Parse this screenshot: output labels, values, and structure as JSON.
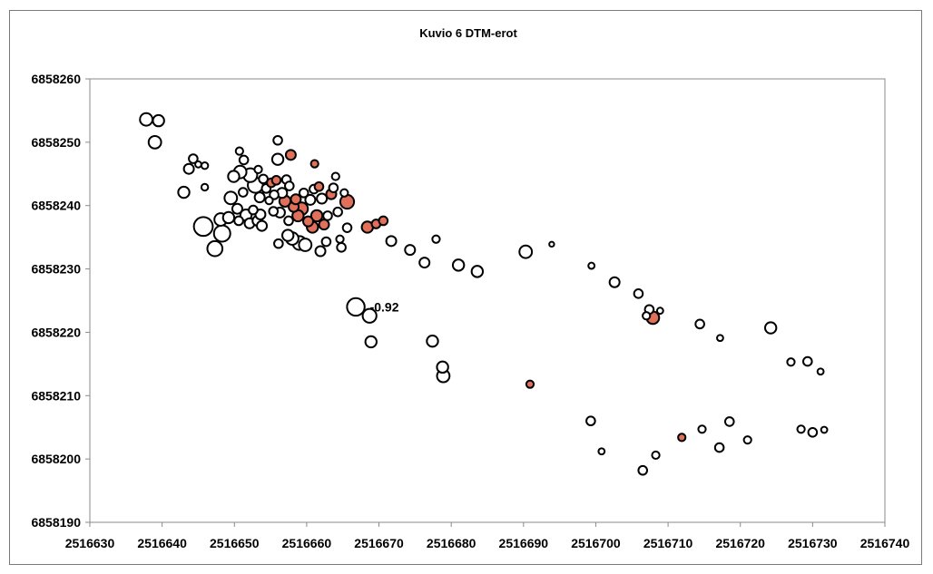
{
  "chart_data": {
    "type": "scatter",
    "title": "Kuvio 6 DTM-erot",
    "xlabel": "",
    "ylabel": "",
    "xlim": [
      2516630,
      2516740
    ],
    "ylim": [
      6858190,
      6858260
    ],
    "xticks": [
      2516630,
      2516640,
      2516650,
      2516660,
      2516670,
      2516680,
      2516690,
      2516700,
      2516710,
      2516720,
      2516730,
      2516740
    ],
    "yticks": [
      6858190,
      6858200,
      6858210,
      6858220,
      6858230,
      6858240,
      6858250,
      6858260
    ],
    "grid": false,
    "legend": "none",
    "colors": {
      "positive": "#e0705a",
      "negative": "#ffffff",
      "stroke": "#000000",
      "plot_border": "#8a8a8a"
    },
    "annotation": {
      "text": "-0.92",
      "x": 2516668.5,
      "y": 6858224
    },
    "points": [
      {
        "x": 2516637.8,
        "y": 6858253.6,
        "size": 0.35,
        "sign": "neg"
      },
      {
        "x": 2516639.5,
        "y": 6858253.4,
        "size": 0.3,
        "sign": "neg"
      },
      {
        "x": 2516639.0,
        "y": 6858250.0,
        "size": 0.35,
        "sign": "neg"
      },
      {
        "x": 2516643.0,
        "y": 6858242.1,
        "size": 0.3,
        "sign": "neg"
      },
      {
        "x": 2516643.7,
        "y": 6858245.8,
        "size": 0.25,
        "sign": "neg"
      },
      {
        "x": 2516644.3,
        "y": 6858247.4,
        "size": 0.2,
        "sign": "neg"
      },
      {
        "x": 2516645.0,
        "y": 6858246.5,
        "size": 0.1,
        "sign": "neg"
      },
      {
        "x": 2516645.9,
        "y": 6858246.3,
        "size": 0.12,
        "sign": "neg"
      },
      {
        "x": 2516645.9,
        "y": 6858242.9,
        "size": 0.12,
        "sign": "neg"
      },
      {
        "x": 2516645.7,
        "y": 6858236.7,
        "size": 0.6,
        "sign": "neg"
      },
      {
        "x": 2516647.3,
        "y": 6858233.2,
        "size": 0.45,
        "sign": "neg"
      },
      {
        "x": 2516648.1,
        "y": 6858237.8,
        "size": 0.35,
        "sign": "neg"
      },
      {
        "x": 2516648.3,
        "y": 6858235.6,
        "size": 0.5,
        "sign": "neg"
      },
      {
        "x": 2516649.2,
        "y": 6858238.1,
        "size": 0.3,
        "sign": "neg"
      },
      {
        "x": 2516649.5,
        "y": 6858241.2,
        "size": 0.35,
        "sign": "neg"
      },
      {
        "x": 2516649.9,
        "y": 6858244.6,
        "size": 0.3,
        "sign": "neg"
      },
      {
        "x": 2516650.4,
        "y": 6858239.5,
        "size": 0.25,
        "sign": "neg"
      },
      {
        "x": 2516650.8,
        "y": 6858245.3,
        "size": 0.35,
        "sign": "neg"
      },
      {
        "x": 2516650.7,
        "y": 6858248.6,
        "size": 0.15,
        "sign": "neg"
      },
      {
        "x": 2516650.6,
        "y": 6858237.6,
        "size": 0.2,
        "sign": "neg"
      },
      {
        "x": 2516651.3,
        "y": 6858247.2,
        "size": 0.2,
        "sign": "neg"
      },
      {
        "x": 2516651.2,
        "y": 6858242.1,
        "size": 0.2,
        "sign": "neg"
      },
      {
        "x": 2516651.6,
        "y": 6858238.5,
        "size": 0.3,
        "sign": "neg"
      },
      {
        "x": 2516652.1,
        "y": 6858237.2,
        "size": 0.25,
        "sign": "neg"
      },
      {
        "x": 2516652.2,
        "y": 6858244.8,
        "size": 0.4,
        "sign": "neg"
      },
      {
        "x": 2516652.6,
        "y": 6858239.3,
        "size": 0.2,
        "sign": "neg"
      },
      {
        "x": 2516652.9,
        "y": 6858243.2,
        "size": 0.45,
        "sign": "neg"
      },
      {
        "x": 2516653.2,
        "y": 6858237.6,
        "size": 0.25,
        "sign": "neg"
      },
      {
        "x": 2516653.3,
        "y": 6858245.7,
        "size": 0.15,
        "sign": "neg"
      },
      {
        "x": 2516653.5,
        "y": 6858241.3,
        "size": 0.25,
        "sign": "neg"
      },
      {
        "x": 2516653.6,
        "y": 6858238.6,
        "size": 0.25,
        "sign": "neg"
      },
      {
        "x": 2516653.8,
        "y": 6858236.8,
        "size": 0.25,
        "sign": "neg"
      },
      {
        "x": 2516654.0,
        "y": 6858244.2,
        "size": 0.2,
        "sign": "neg"
      },
      {
        "x": 2516654.4,
        "y": 6858242.7,
        "size": 0.2,
        "sign": "neg"
      },
      {
        "x": 2516654.8,
        "y": 6858240.8,
        "size": 0.15,
        "sign": "neg"
      },
      {
        "x": 2516655.1,
        "y": 6858243.6,
        "size": 0.2,
        "sign": "pos"
      },
      {
        "x": 2516655.4,
        "y": 6858239.1,
        "size": 0.2,
        "sign": "neg"
      },
      {
        "x": 2516655.5,
        "y": 6858241.7,
        "size": 0.2,
        "sign": "neg"
      },
      {
        "x": 2516655.8,
        "y": 6858244.0,
        "size": 0.2,
        "sign": "pos"
      },
      {
        "x": 2516656.0,
        "y": 6858247.3,
        "size": 0.3,
        "sign": "neg"
      },
      {
        "x": 2516656.0,
        "y": 6858250.3,
        "size": 0.2,
        "sign": "neg"
      },
      {
        "x": 2516656.1,
        "y": 6858234.0,
        "size": 0.2,
        "sign": "neg"
      },
      {
        "x": 2516656.3,
        "y": 6858238.9,
        "size": 0.25,
        "sign": "neg"
      },
      {
        "x": 2516656.6,
        "y": 6858242.0,
        "size": 0.25,
        "sign": "neg"
      },
      {
        "x": 2516657.0,
        "y": 6858240.7,
        "size": 0.3,
        "sign": "pos"
      },
      {
        "x": 2516657.2,
        "y": 6858244.1,
        "size": 0.2,
        "sign": "neg"
      },
      {
        "x": 2516657.4,
        "y": 6858235.3,
        "size": 0.3,
        "sign": "neg"
      },
      {
        "x": 2516657.5,
        "y": 6858237.6,
        "size": 0.2,
        "sign": "neg"
      },
      {
        "x": 2516657.6,
        "y": 6858243.1,
        "size": 0.2,
        "sign": "neg"
      },
      {
        "x": 2516657.8,
        "y": 6858248.0,
        "size": 0.25,
        "sign": "pos"
      },
      {
        "x": 2516658.0,
        "y": 6858234.8,
        "size": 0.35,
        "sign": "neg"
      },
      {
        "x": 2516658.2,
        "y": 6858239.8,
        "size": 0.25,
        "sign": "pos"
      },
      {
        "x": 2516658.5,
        "y": 6858241.0,
        "size": 0.25,
        "sign": "pos"
      },
      {
        "x": 2516658.8,
        "y": 6858238.4,
        "size": 0.3,
        "sign": "pos"
      },
      {
        "x": 2516659.0,
        "y": 6858234.1,
        "size": 0.4,
        "sign": "neg"
      },
      {
        "x": 2516659.3,
        "y": 6858239.5,
        "size": 0.35,
        "sign": "pos"
      },
      {
        "x": 2516659.6,
        "y": 6858242.0,
        "size": 0.2,
        "sign": "neg"
      },
      {
        "x": 2516659.8,
        "y": 6858233.8,
        "size": 0.35,
        "sign": "neg"
      },
      {
        "x": 2516660.2,
        "y": 6858237.5,
        "size": 0.25,
        "sign": "pos"
      },
      {
        "x": 2516660.5,
        "y": 6858240.9,
        "size": 0.25,
        "sign": "neg"
      },
      {
        "x": 2516660.8,
        "y": 6858236.6,
        "size": 0.3,
        "sign": "pos"
      },
      {
        "x": 2516661.0,
        "y": 6858242.6,
        "size": 0.2,
        "sign": "neg"
      },
      {
        "x": 2516661.1,
        "y": 6858246.6,
        "size": 0.15,
        "sign": "pos"
      },
      {
        "x": 2516661.4,
        "y": 6858238.4,
        "size": 0.3,
        "sign": "pos"
      },
      {
        "x": 2516661.7,
        "y": 6858243.0,
        "size": 0.2,
        "sign": "pos"
      },
      {
        "x": 2516661.9,
        "y": 6858232.8,
        "size": 0.25,
        "sign": "neg"
      },
      {
        "x": 2516662.1,
        "y": 6858241.1,
        "size": 0.25,
        "sign": "neg"
      },
      {
        "x": 2516662.4,
        "y": 6858237.0,
        "size": 0.25,
        "sign": "pos"
      },
      {
        "x": 2516662.7,
        "y": 6858234.3,
        "size": 0.2,
        "sign": "neg"
      },
      {
        "x": 2516662.9,
        "y": 6858238.4,
        "size": 0.2,
        "sign": "neg"
      },
      {
        "x": 2516663.4,
        "y": 6858241.8,
        "size": 0.25,
        "sign": "pos"
      },
      {
        "x": 2516663.7,
        "y": 6858242.8,
        "size": 0.2,
        "sign": "neg"
      },
      {
        "x": 2516664.0,
        "y": 6858244.6,
        "size": 0.15,
        "sign": "neg"
      },
      {
        "x": 2516664.3,
        "y": 6858239.0,
        "size": 0.2,
        "sign": "neg"
      },
      {
        "x": 2516664.6,
        "y": 6858234.7,
        "size": 0.15,
        "sign": "neg"
      },
      {
        "x": 2516664.8,
        "y": 6858233.4,
        "size": 0.2,
        "sign": "neg"
      },
      {
        "x": 2516665.2,
        "y": 6858242.0,
        "size": 0.15,
        "sign": "neg"
      },
      {
        "x": 2516665.6,
        "y": 6858240.6,
        "size": 0.4,
        "sign": "pos"
      },
      {
        "x": 2516665.6,
        "y": 6858236.5,
        "size": 0.2,
        "sign": "neg"
      },
      {
        "x": 2516666.8,
        "y": 6858224.0,
        "size": 0.55,
        "sign": "neg"
      },
      {
        "x": 2516668.4,
        "y": 6858236.6,
        "size": 0.3,
        "sign": "pos"
      },
      {
        "x": 2516668.7,
        "y": 6858222.6,
        "size": 0.4,
        "sign": "neg"
      },
      {
        "x": 2516668.9,
        "y": 6858218.5,
        "size": 0.3,
        "sign": "neg"
      },
      {
        "x": 2516669.6,
        "y": 6858237.1,
        "size": 0.2,
        "sign": "pos"
      },
      {
        "x": 2516670.6,
        "y": 6858237.6,
        "size": 0.2,
        "sign": "pos"
      },
      {
        "x": 2516671.7,
        "y": 6858234.4,
        "size": 0.25,
        "sign": "neg"
      },
      {
        "x": 2516674.3,
        "y": 6858233.0,
        "size": 0.25,
        "sign": "neg"
      },
      {
        "x": 2516676.3,
        "y": 6858231.0,
        "size": 0.25,
        "sign": "neg"
      },
      {
        "x": 2516677.4,
        "y": 6858218.6,
        "size": 0.3,
        "sign": "neg"
      },
      {
        "x": 2516677.9,
        "y": 6858234.7,
        "size": 0.15,
        "sign": "neg"
      },
      {
        "x": 2516678.8,
        "y": 6858214.5,
        "size": 0.3,
        "sign": "neg"
      },
      {
        "x": 2516678.9,
        "y": 6858213.1,
        "size": 0.35,
        "sign": "neg"
      },
      {
        "x": 2516681.0,
        "y": 6858230.6,
        "size": 0.3,
        "sign": "neg"
      },
      {
        "x": 2516683.6,
        "y": 6858229.6,
        "size": 0.3,
        "sign": "neg"
      },
      {
        "x": 2516690.3,
        "y": 6858232.7,
        "size": 0.35,
        "sign": "neg"
      },
      {
        "x": 2516690.9,
        "y": 6858211.8,
        "size": 0.15,
        "sign": "pos"
      },
      {
        "x": 2516693.9,
        "y": 6858233.9,
        "size": 0.05,
        "sign": "neg"
      },
      {
        "x": 2516699.3,
        "y": 6858206.0,
        "size": 0.2,
        "sign": "neg"
      },
      {
        "x": 2516699.4,
        "y": 6858230.5,
        "size": 0.1,
        "sign": "neg"
      },
      {
        "x": 2516700.8,
        "y": 6858201.2,
        "size": 0.1,
        "sign": "neg"
      },
      {
        "x": 2516702.6,
        "y": 6858227.9,
        "size": 0.25,
        "sign": "neg"
      },
      {
        "x": 2516705.9,
        "y": 6858226.1,
        "size": 0.2,
        "sign": "neg"
      },
      {
        "x": 2516706.5,
        "y": 6858198.2,
        "size": 0.2,
        "sign": "neg"
      },
      {
        "x": 2516707.0,
        "y": 6858222.6,
        "size": 0.15,
        "sign": "neg"
      },
      {
        "x": 2516707.4,
        "y": 6858223.6,
        "size": 0.2,
        "sign": "neg"
      },
      {
        "x": 2516707.9,
        "y": 6858222.3,
        "size": 0.35,
        "sign": "pos"
      },
      {
        "x": 2516708.3,
        "y": 6858200.6,
        "size": 0.15,
        "sign": "neg"
      },
      {
        "x": 2516708.9,
        "y": 6858223.4,
        "size": 0.1,
        "sign": "neg"
      },
      {
        "x": 2516711.9,
        "y": 6858203.4,
        "size": 0.15,
        "sign": "pos"
      },
      {
        "x": 2516714.4,
        "y": 6858221.3,
        "size": 0.2,
        "sign": "neg"
      },
      {
        "x": 2516714.7,
        "y": 6858204.7,
        "size": 0.15,
        "sign": "neg"
      },
      {
        "x": 2516717.1,
        "y": 6858201.8,
        "size": 0.2,
        "sign": "neg"
      },
      {
        "x": 2516717.2,
        "y": 6858219.1,
        "size": 0.1,
        "sign": "neg"
      },
      {
        "x": 2516718.5,
        "y": 6858205.9,
        "size": 0.2,
        "sign": "neg"
      },
      {
        "x": 2516721.0,
        "y": 6858203.0,
        "size": 0.15,
        "sign": "neg"
      },
      {
        "x": 2516724.2,
        "y": 6858220.7,
        "size": 0.3,
        "sign": "neg"
      },
      {
        "x": 2516727.0,
        "y": 6858215.3,
        "size": 0.15,
        "sign": "neg"
      },
      {
        "x": 2516728.4,
        "y": 6858204.7,
        "size": 0.15,
        "sign": "neg"
      },
      {
        "x": 2516729.3,
        "y": 6858215.4,
        "size": 0.2,
        "sign": "neg"
      },
      {
        "x": 2516730.0,
        "y": 6858204.2,
        "size": 0.2,
        "sign": "neg"
      },
      {
        "x": 2516731.1,
        "y": 6858213.8,
        "size": 0.1,
        "sign": "neg"
      },
      {
        "x": 2516731.6,
        "y": 6858204.6,
        "size": 0.1,
        "sign": "neg"
      }
    ]
  }
}
